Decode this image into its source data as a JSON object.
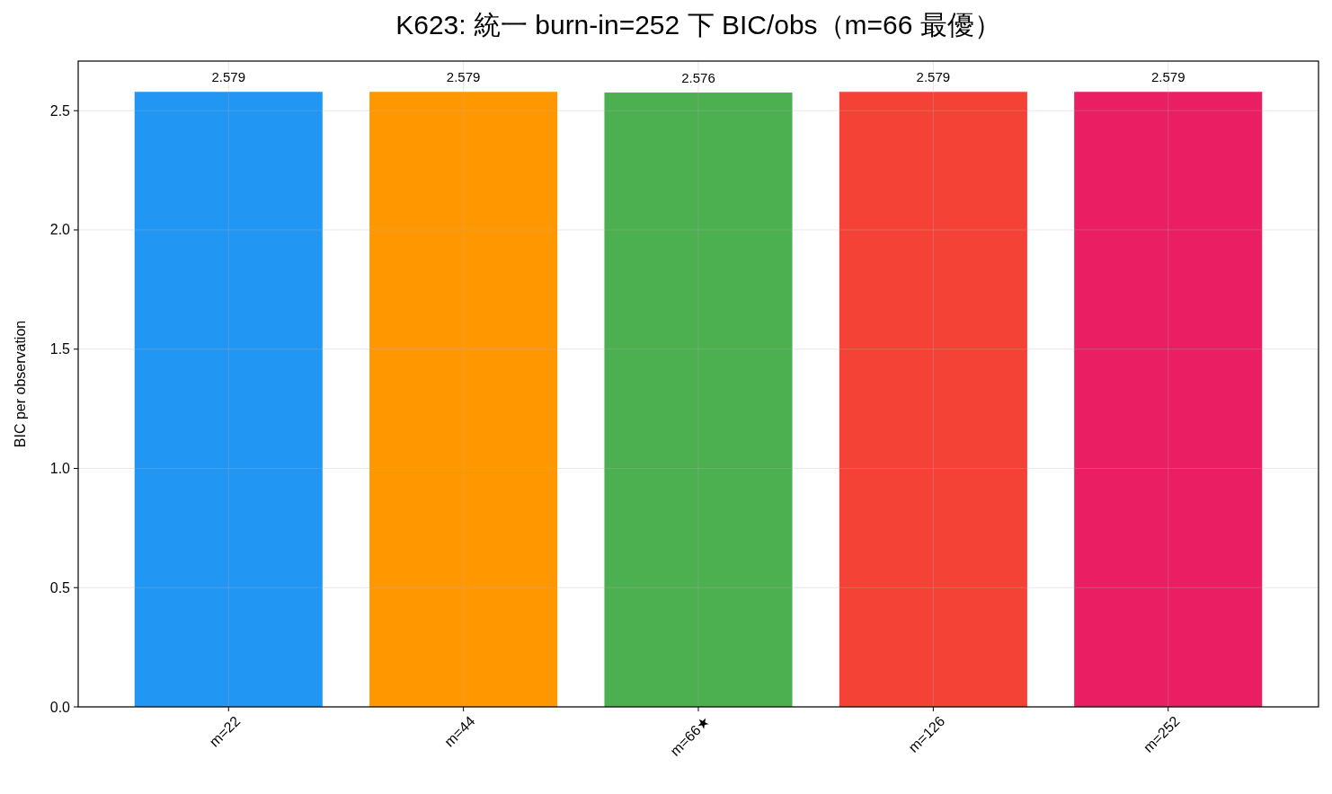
{
  "chart_data": {
    "type": "bar",
    "title": "K623: 統一 burn-in=252 下 BIC/obs（m=66 最優）",
    "ylabel": "BIC per observation",
    "categories": [
      "m=22",
      "m=44",
      "m=66★",
      "m=126",
      "m=252"
    ],
    "values": [
      2.579,
      2.579,
      2.576,
      2.579,
      2.579
    ],
    "colors": [
      "#2196f3",
      "#ff9800",
      "#4caf50",
      "#f44336",
      "#e91e63"
    ],
    "ylim": [
      0,
      2.708
    ],
    "yticks": [
      {
        "value": 0,
        "label": "0.0"
      },
      0.5,
      {
        "value": 1,
        "label": "1.0"
      },
      1.5,
      {
        "value": 2,
        "label": "2.0"
      },
      2.5
    ],
    "grid": true,
    "data_labels": true
  }
}
